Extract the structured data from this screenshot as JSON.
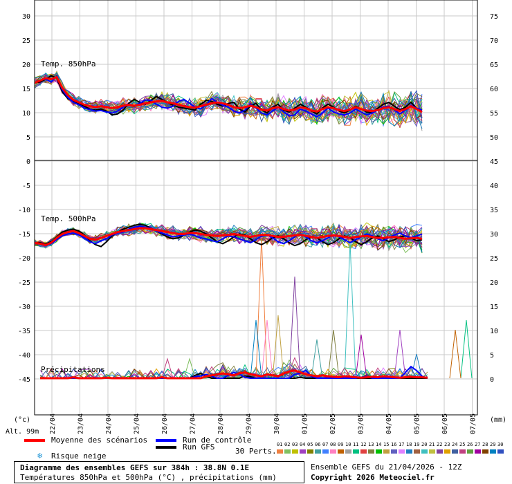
{
  "chart_data": {
    "type": "line",
    "dates": [
      "22/04",
      "23/04",
      "24/04",
      "25/04",
      "26/04",
      "27/04",
      "28/04",
      "29/04",
      "30/04",
      "01/05",
      "02/05",
      "03/05",
      "04/05",
      "05/05",
      "06/05",
      "07/05"
    ],
    "left_ticks": [
      "30",
      "25",
      "20",
      "15",
      "10",
      "5",
      "0",
      "-5",
      "-10",
      "-15",
      "-20",
      "-25",
      "-30",
      "-35",
      "-40",
      "-45"
    ],
    "right_ticks": [
      "75",
      "70",
      "65",
      "60",
      "55",
      "50",
      "45",
      "40",
      "35",
      "30",
      "25",
      "20",
      "15",
      "10",
      "5",
      "0"
    ],
    "left_unit": "(°c)",
    "right_unit": "(mm)",
    "altitude": "Alt. 99m",
    "panel_labels": {
      "t850": "Temp. 850hPa",
      "t500": "Temp. 500hPa",
      "precip": "Précipitations"
    },
    "t850_mean": [
      16.0,
      16.5,
      17.0,
      16.8,
      17.2,
      15.0,
      13.5,
      12.5,
      12.0,
      11.5,
      11.2,
      11.0,
      11.2,
      11.0,
      10.8,
      11.0,
      11.3,
      11.5,
      11.3,
      11.5,
      11.8,
      12.0,
      12.2,
      12.3,
      12.0,
      11.8,
      11.5,
      11.2,
      11.0,
      10.9,
      11.2,
      11.5,
      11.8,
      12.0,
      11.8,
      11.5,
      11.0,
      10.8,
      11.0,
      11.3,
      11.0,
      10.5,
      10.3,
      10.8,
      11.0,
      10.6,
      10.3,
      10.5,
      11.0,
      10.8,
      10.3,
      10.1,
      10.6,
      11.0,
      10.8,
      10.4,
      10.2,
      10.5,
      11.0,
      10.6,
      10.3,
      10.2,
      10.4,
      10.8,
      11.0,
      10.6,
      10.2,
      10.6,
      11.2,
      10.6,
      10.0
    ],
    "t850_control": [
      16.0,
      16.6,
      16.8,
      16.2,
      17.4,
      14.6,
      13.0,
      12.0,
      11.5,
      10.8,
      10.5,
      10.2,
      10.3,
      10.0,
      9.8,
      10.2,
      11.0,
      11.6,
      11.2,
      11.8,
      12.5,
      12.4,
      11.6,
      11.0,
      10.8,
      11.2,
      12.2,
      12.6,
      11.8,
      11.0,
      10.6,
      11.5,
      12.8,
      12.0,
      11.4,
      11.0,
      10.2,
      9.8,
      10.4,
      11.6,
      10.8,
      9.8,
      9.4,
      10.2,
      11.0,
      10.0,
      9.2,
      9.4,
      10.6,
      10.2,
      9.6,
      9.0,
      9.8,
      10.8,
      10.0,
      9.6,
      9.4,
      9.8,
      10.6,
      10.0,
      9.4,
      9.8,
      10.4,
      11.0,
      11.2,
      10.4,
      9.6,
      10.4,
      11.4,
      10.8,
      10.4
    ],
    "t850_gfs": [
      16.0,
      16.2,
      16.8,
      17.5,
      17.0,
      14.2,
      12.8,
      12.2,
      11.8,
      11.2,
      10.6,
      10.4,
      10.6,
      10.2,
      9.4,
      9.6,
      10.4,
      11.8,
      12.6,
      12.0,
      11.6,
      12.4,
      13.2,
      12.6,
      12.0,
      11.4,
      11.0,
      10.8,
      10.6,
      10.4,
      11.6,
      12.4,
      12.2,
      11.6,
      11.2,
      11.8,
      12.0,
      10.6,
      10.0,
      11.2,
      11.8,
      10.4,
      9.8,
      11.0,
      11.6,
      10.4,
      10.0,
      10.8,
      11.6,
      11.0,
      10.2,
      9.6,
      10.8,
      11.6,
      11.0,
      10.2,
      9.8,
      10.4,
      11.2,
      10.6,
      10.0,
      9.8,
      10.8,
      11.6,
      12.0,
      11.2,
      10.4,
      11.0,
      12.0,
      10.8,
      10.0
    ],
    "t500_mean": [
      -17.0,
      -17.2,
      -17.5,
      -17.0,
      -16.0,
      -15.2,
      -14.8,
      -14.6,
      -15.0,
      -15.6,
      -16.2,
      -16.4,
      -16.0,
      -15.6,
      -15.2,
      -14.8,
      -14.6,
      -14.4,
      -14.2,
      -14.0,
      -14.0,
      -14.2,
      -14.4,
      -14.6,
      -14.8,
      -15.0,
      -15.2,
      -15.2,
      -15.0,
      -15.0,
      -15.2,
      -15.4,
      -15.5,
      -15.6,
      -15.5,
      -15.4,
      -15.2,
      -15.4,
      -15.6,
      -15.8,
      -15.6,
      -15.4,
      -15.4,
      -15.6,
      -15.8,
      -15.8,
      -15.6,
      -15.5,
      -15.4,
      -15.6,
      -15.8,
      -16.0,
      -15.8,
      -15.6,
      -15.5,
      -15.6,
      -15.8,
      -16.0,
      -15.8,
      -15.7,
      -15.6,
      -15.8,
      -16.0,
      -16.0,
      -15.9,
      -15.8,
      -16.0,
      -16.2,
      -16.1,
      -16.0,
      -16.2
    ],
    "t500_control": [
      -17.0,
      -17.2,
      -17.6,
      -17.2,
      -16.4,
      -15.6,
      -15.2,
      -15.0,
      -15.4,
      -16.0,
      -16.8,
      -17.2,
      -16.6,
      -16.2,
      -15.4,
      -15.0,
      -14.8,
      -14.2,
      -13.8,
      -13.6,
      -13.8,
      -14.0,
      -14.6,
      -15.0,
      -15.4,
      -15.8,
      -15.6,
      -15.4,
      -15.2,
      -15.6,
      -16.0,
      -16.2,
      -16.6,
      -16.8,
      -16.2,
      -15.6,
      -15.8,
      -16.2,
      -16.6,
      -17.0,
      -16.4,
      -15.6,
      -15.4,
      -16.0,
      -16.8,
      -17.2,
      -16.6,
      -15.8,
      -15.2,
      -15.8,
      -16.6,
      -17.0,
      -16.6,
      -16.0,
      -15.4,
      -15.8,
      -16.4,
      -17.0,
      -16.4,
      -15.8,
      -15.2,
      -15.6,
      -16.2,
      -16.6,
      -16.0,
      -15.4,
      -15.0,
      -15.6,
      -16.0,
      -15.6,
      -15.2
    ],
    "t500_gfs": [
      -17.0,
      -17.0,
      -17.3,
      -16.8,
      -15.8,
      -14.8,
      -14.4,
      -14.2,
      -14.6,
      -15.4,
      -16.6,
      -17.4,
      -17.8,
      -16.8,
      -15.6,
      -14.8,
      -14.2,
      -13.8,
      -13.4,
      -13.2,
      -13.4,
      -14.0,
      -14.6,
      -15.2,
      -15.8,
      -16.2,
      -16.0,
      -15.4,
      -14.8,
      -14.4,
      -14.6,
      -15.2,
      -16.0,
      -16.8,
      -17.2,
      -16.6,
      -15.8,
      -15.2,
      -15.4,
      -16.2,
      -17.0,
      -17.4,
      -16.8,
      -16.0,
      -15.6,
      -16.2,
      -17.0,
      -17.6,
      -17.2,
      -16.4,
      -15.8,
      -16.0,
      -16.8,
      -17.4,
      -17.0,
      -16.2,
      -15.6,
      -16.0,
      -16.8,
      -17.4,
      -16.8,
      -16.0,
      -15.6,
      -16.2,
      -16.8,
      -16.4,
      -15.8,
      -15.6,
      -16.0,
      -16.6,
      -16.4
    ],
    "precip_mean": [
      0,
      0,
      0,
      0,
      0,
      0,
      0.2,
      0,
      0,
      0,
      0,
      0,
      0.1,
      0,
      0,
      0,
      0,
      0,
      0,
      0,
      0,
      0,
      0.2,
      0,
      0,
      0,
      0,
      0,
      0,
      0,
      0.4,
      0.6,
      0.8,
      1.0,
      0.8,
      0.6,
      1.0,
      1.2,
      0.8,
      0.6,
      0.4,
      0.8,
      0.6,
      0.4,
      1.0,
      1.4,
      1.6,
      1.2,
      0.8,
      0.6,
      0.4,
      0.6,
      0.4,
      0.3,
      0.2,
      0.4,
      0.3,
      0.2,
      0.1,
      0.2,
      0.3,
      0.2,
      0.4,
      0.3,
      0.2,
      0.1,
      0.2,
      0.3,
      0.2,
      0.2,
      0.1
    ],
    "precip_control": [
      0,
      0,
      0,
      0,
      0,
      0,
      0,
      0,
      0,
      0,
      0,
      0,
      0,
      0,
      0,
      0,
      0,
      0,
      0,
      0,
      0,
      0,
      0,
      0,
      0,
      0,
      0,
      0,
      0.3,
      0.5,
      0.8,
      0.4,
      0,
      0,
      0.6,
      1.2,
      0.8,
      0.2,
      0,
      0,
      0,
      0,
      0,
      0,
      0,
      0,
      0.8,
      1.0,
      1.6,
      0.4,
      0,
      0,
      0,
      0,
      0,
      0,
      0,
      0,
      0.2,
      0.4,
      0,
      0,
      0,
      0,
      0,
      0,
      1.2,
      2.4,
      1.6,
      0.4,
      0
    ],
    "precip_gfs": [
      0,
      0,
      0,
      0,
      0,
      0,
      0,
      0,
      0,
      0,
      0,
      0,
      0,
      0,
      0,
      0,
      0,
      0,
      0,
      0,
      0,
      0,
      0,
      0,
      0,
      0,
      0,
      0,
      0.6,
      1.0,
      0.4,
      0,
      0,
      0,
      0,
      0,
      0,
      0.5,
      0.3,
      0,
      0,
      0,
      0,
      0,
      0,
      0,
      0,
      0.2,
      0,
      0,
      0,
      0,
      0,
      0,
      0,
      0,
      0,
      0,
      0,
      0,
      0,
      0,
      0,
      0,
      0,
      0,
      0,
      0,
      0,
      0,
      0
    ],
    "precip_spikes": [
      {
        "step": 41,
        "value": 29
      },
      {
        "step": 42,
        "value": 12
      },
      {
        "step": 44,
        "value": 13
      },
      {
        "step": 47,
        "value": 21
      },
      {
        "step": 40,
        "value": 12
      },
      {
        "step": 51,
        "value": 8
      },
      {
        "step": 54,
        "value": 10
      },
      {
        "step": 57,
        "value": 28
      },
      {
        "step": 59,
        "value": 9
      },
      {
        "step": 66,
        "value": 10
      },
      {
        "step": 78,
        "value": 12
      },
      {
        "step": 69,
        "value": 5
      },
      {
        "step": 24,
        "value": 4
      },
      {
        "step": 28,
        "value": 4
      },
      {
        "step": 76,
        "value": 10
      }
    ]
  },
  "legend": {
    "mean": "Moyenne des scénarios",
    "control": "Run de contrôle",
    "gfs": "Run GFS",
    "snow": "Risque neige",
    "perts": "30 Perts.",
    "pert_numbers": [
      "01",
      "02",
      "03",
      "04",
      "05",
      "06",
      "07",
      "08",
      "09",
      "10",
      "11",
      "12",
      "13",
      "14",
      "15",
      "16",
      "17",
      "18",
      "19",
      "20",
      "21",
      "22",
      "23",
      "24",
      "25",
      "26",
      "27",
      "28",
      "29",
      "30"
    ],
    "colors": {
      "mean": "#ff0000",
      "control": "#0000ff",
      "gfs": "#000000"
    },
    "pert_colors": [
      "#f08040",
      "#80c060",
      "#c0c000",
      "#a040c0",
      "#808000",
      "#40a0a0",
      "#4080ff",
      "#ff80c0",
      "#c06000",
      "#a0a0a0",
      "#00c080",
      "#e04040",
      "#808040",
      "#00c000",
      "#c0a040",
      "#6060c0",
      "#e080ff",
      "#2080c0",
      "#a06040",
      "#40c0c0",
      "#c0c040",
      "#8040a0",
      "#e0a000",
      "#4060a0",
      "#c04080",
      "#60a040",
      "#a000a0",
      "#804000",
      "#0080c0",
      "#3050c0"
    ]
  },
  "footer": {
    "title": "Diagramme des ensembles GEFS sur 384h : 38.8N 0.1E",
    "subtitle": "Températures 850hPa et 500hPa (°C) , précipitations (mm)",
    "run": "Ensemble GEFS du 21/04/2026 - 12Z",
    "copyright": "Copyright 2026 Meteociel.fr"
  }
}
